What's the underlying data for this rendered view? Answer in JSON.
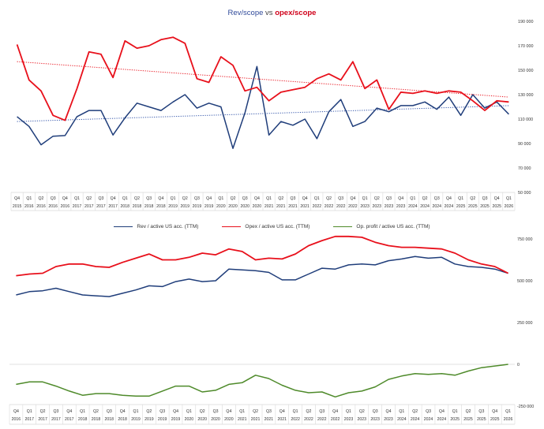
{
  "title": {
    "part1": "Rev/scope",
    "part2": " vs ",
    "part3": "opex/scope"
  },
  "colors": {
    "rev": "#1f3d7a",
    "opex": "#e8101b",
    "profit": "#4e8a2a",
    "trend_rev": "#3355aa",
    "trend_opex": "#e8101b",
    "grid": "#d9d9d9"
  },
  "chart_data": [
    {
      "type": "line",
      "title": "Rev/scope vs opex/scope",
      "categories": [
        "Q4 2015",
        "Q1 2016",
        "Q2 2016",
        "Q3 2016",
        "Q4 2016",
        "Q1 2017",
        "Q2 2017",
        "Q3 2017",
        "Q4 2017",
        "Q1 2018",
        "Q2 2018",
        "Q3 2018",
        "Q4 2018",
        "Q1 2019",
        "Q2 2019",
        "Q3 2019",
        "Q4 2019",
        "Q1 2020",
        "Q2 2020",
        "Q3 2020",
        "Q4 2020",
        "Q1 2021",
        "Q2 2021",
        "Q3 2021",
        "Q4 2021",
        "Q1 2022",
        "Q2 2022",
        "Q3 2022",
        "Q4 2022",
        "Q1 2023",
        "Q2 2023",
        "Q3 2023",
        "Q4 2023",
        "Q1 2024",
        "Q2 2024",
        "Q3 2024",
        "Q4 2024",
        "Q1 2025",
        "Q2 2025",
        "Q3 2025",
        "Q4 2025",
        "Q1 2026"
      ],
      "tick_labels": [
        "Q4",
        "Q1",
        "Q2",
        "Q3",
        "Q4",
        "Q1",
        "Q2",
        "Q3",
        "Q4",
        "Q1",
        "Q2",
        "Q3",
        "Q4",
        "Q1",
        "Q2",
        "Q3",
        "Q4",
        "Q1",
        "Q2",
        "Q3",
        "Q4",
        "Q1",
        "Q2",
        "Q3",
        "Q4",
        "Q1",
        "Q2",
        "Q3",
        "Q4",
        "Q1",
        "Q2",
        "Q3",
        "Q4",
        "Q1",
        "Q2",
        "Q3",
        "Q4",
        "Q1",
        "Q2",
        "Q3",
        "Q4",
        "Q1"
      ],
      "tick_years": [
        "2015",
        "2016",
        "2016",
        "2016",
        "2016",
        "2017",
        "2017",
        "2017",
        "2017",
        "2018",
        "2018",
        "2018",
        "2018",
        "2019",
        "2019",
        "2019",
        "2019",
        "2020",
        "2020",
        "2020",
        "2020",
        "2021",
        "2021",
        "2021",
        "2021",
        "2022",
        "2022",
        "2022",
        "2022",
        "2023",
        "2023",
        "2023",
        "2023",
        "2024",
        "2024",
        "2024",
        "2024",
        "2025",
        "2025",
        "2025",
        "2025",
        "2026"
      ],
      "ylim": [
        50000,
        190000
      ],
      "y_ticks": [
        "50 000",
        "70 000",
        "90 000",
        "110 000",
        "130 000",
        "150 000",
        "170 000",
        "190 000"
      ],
      "y_axis_side": "right",
      "series": [
        {
          "key": "rev",
          "values": [
            112000,
            104000,
            89000,
            96000,
            96500,
            112000,
            117000,
            117000,
            97000,
            111000,
            123000,
            120000,
            117000,
            124000,
            130000,
            119000,
            123000,
            120000,
            86000,
            115000,
            153000,
            97000,
            108000,
            105000,
            110000,
            94000,
            116000,
            126000,
            104000,
            108000,
            119000,
            116000,
            121000,
            121000,
            124000,
            118000,
            128000,
            113000,
            130000,
            119000,
            124000,
            114000
          ],
          "trend": [
            108000,
            121000
          ]
        },
        {
          "key": "opex",
          "values": [
            171000,
            142000,
            133000,
            113000,
            109000,
            135000,
            165000,
            163000,
            144000,
            174000,
            168000,
            170000,
            175000,
            177000,
            172000,
            143000,
            140000,
            161000,
            154000,
            133000,
            136000,
            125000,
            132000,
            134000,
            136000,
            143000,
            147000,
            142000,
            157000,
            135000,
            142000,
            118000,
            132000,
            131000,
            133000,
            131000,
            133000,
            132000,
            125000,
            117000,
            125000,
            124000
          ],
          "trend": [
            157000,
            128000
          ]
        }
      ]
    },
    {
      "type": "line",
      "categories": [
        "Q4 2016",
        "Q1 2017",
        "Q2 2017",
        "Q3 2017",
        "Q4 2017",
        "Q1 2018",
        "Q2 2018",
        "Q3 2018",
        "Q4 2018",
        "Q1 2019",
        "Q2 2019",
        "Q3 2019",
        "Q4 2019",
        "Q1 2020",
        "Q2 2020",
        "Q3 2020",
        "Q4 2020",
        "Q1 2021",
        "Q2 2021",
        "Q3 2021",
        "Q4 2021",
        "Q1 2022",
        "Q2 2022",
        "Q3 2022",
        "Q4 2022",
        "Q1 2023",
        "Q2 2023",
        "Q3 2023",
        "Q4 2023",
        "Q1 2024",
        "Q2 2024",
        "Q3 2024",
        "Q4 2024",
        "Q1 2025",
        "Q2 2025",
        "Q3 2025",
        "Q4 2025",
        "Q1 2026"
      ],
      "tick_labels": [
        "Q4",
        "Q1",
        "Q2",
        "Q3",
        "Q4",
        "Q1",
        "Q2",
        "Q3",
        "Q4",
        "Q1",
        "Q2",
        "Q3",
        "Q4",
        "Q1",
        "Q2",
        "Q3",
        "Q4",
        "Q1",
        "Q2",
        "Q3",
        "Q4",
        "Q1",
        "Q2",
        "Q3",
        "Q4",
        "Q1",
        "Q2",
        "Q3",
        "Q4",
        "Q1",
        "Q2",
        "Q3",
        "Q4",
        "Q1",
        "Q2",
        "Q3",
        "Q4",
        "Q1"
      ],
      "tick_years": [
        "2016",
        "2017",
        "2017",
        "2017",
        "2017",
        "2018",
        "2018",
        "2018",
        "2018",
        "2019",
        "2019",
        "2019",
        "2019",
        "2020",
        "2020",
        "2020",
        "2020",
        "2021",
        "2021",
        "2021",
        "2021",
        "2022",
        "2022",
        "2022",
        "2022",
        "2023",
        "2023",
        "2023",
        "2023",
        "2024",
        "2024",
        "2024",
        "2024",
        "2025",
        "2025",
        "2025",
        "2025",
        "2026"
      ],
      "ylim": [
        -250000,
        750000
      ],
      "y_ticks": [
        "-250 000",
        "0",
        "250 000",
        "500 000",
        "750 000"
      ],
      "y_tick_values": [
        -250000,
        0,
        250000,
        500000,
        750000
      ],
      "y_axis_side": "right",
      "legend": [
        "Rev / active US acc. (TTM)",
        "Opex / active US acc. (TTM)",
        "Op. profit / active US acc. (TTM)"
      ],
      "legend_position": "top-center",
      "series": [
        {
          "key": "rev",
          "name": "Rev / active US acc. (TTM)",
          "values": [
            415000,
            435000,
            440000,
            455000,
            435000,
            415000,
            410000,
            405000,
            425000,
            445000,
            470000,
            465000,
            495000,
            510000,
            495000,
            500000,
            570000,
            565000,
            560000,
            550000,
            505000,
            505000,
            540000,
            575000,
            570000,
            595000,
            600000,
            595000,
            620000,
            630000,
            645000,
            635000,
            640000,
            600000,
            585000,
            580000,
            570000,
            545000
          ]
        },
        {
          "key": "opex",
          "name": "Opex / active US acc. (TTM)",
          "values": [
            530000,
            540000,
            545000,
            585000,
            600000,
            600000,
            585000,
            580000,
            610000,
            635000,
            660000,
            625000,
            625000,
            640000,
            665000,
            655000,
            690000,
            675000,
            625000,
            635000,
            630000,
            660000,
            710000,
            740000,
            765000,
            765000,
            760000,
            730000,
            710000,
            700000,
            700000,
            695000,
            690000,
            665000,
            625000,
            600000,
            585000,
            545000
          ]
        },
        {
          "key": "profit",
          "name": "Op. profit / active US acc. (TTM)",
          "values": [
            -120000,
            -105000,
            -105000,
            -130000,
            -160000,
            -185000,
            -175000,
            -175000,
            -185000,
            -190000,
            -190000,
            -160000,
            -130000,
            -130000,
            -165000,
            -155000,
            -120000,
            -110000,
            -65000,
            -85000,
            -125000,
            -155000,
            -170000,
            -165000,
            -195000,
            -170000,
            -160000,
            -135000,
            -90000,
            -70000,
            -55000,
            -60000,
            -55000,
            -65000,
            -40000,
            -20000,
            -10000,
            0
          ]
        }
      ]
    }
  ]
}
